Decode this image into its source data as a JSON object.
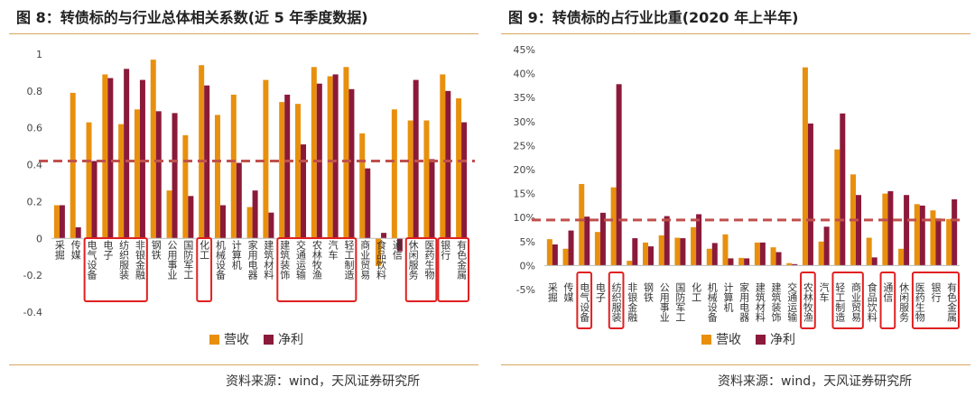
{
  "colors": {
    "revenue": "#E8900E",
    "profit": "#8B1A3A",
    "avg_line": "#C0504D",
    "highlight_box": "#E02020",
    "axis_text": "#444444"
  },
  "chart_data": [
    {
      "id": "fig8",
      "type": "bar",
      "title": "图 8：转债标的与行业总体相关系数(近 5 年季度数据)",
      "ylim": [
        -0.4,
        1
      ],
      "yticks": [
        1,
        0.8,
        0.6,
        0.4,
        0.2,
        0,
        -0.2,
        -0.4
      ],
      "ytick_labels": [
        "1",
        "0.8",
        "0.6",
        "0.4",
        "0.2",
        "0",
        "-0.2",
        "-0.4"
      ],
      "reference_line": 0.42,
      "categories": [
        "采掘",
        "传媒",
        "电气设备",
        "电子",
        "纺织服装",
        "非银金融",
        "钢铁",
        "公用事业",
        "国防军工",
        "化工",
        "机械设备",
        "计算机",
        "家用电器",
        "建筑材料",
        "建筑装饰",
        "交通运输",
        "农林牧渔",
        "汽车",
        "轻工制造",
        "商业贸易",
        "食品饮料",
        "通信",
        "休闲服务",
        "医药生物",
        "银行",
        "有色金属"
      ],
      "series": [
        {
          "name": "营收",
          "values": [
            0.18,
            0.79,
            0.63,
            0.89,
            0.62,
            0.7,
            0.97,
            0.26,
            0.56,
            0.94,
            0.67,
            0.78,
            0.17,
            0.86,
            0.74,
            0.73,
            0.93,
            0.88,
            0.93,
            0.57,
            -0.15,
            0.7,
            0.64,
            0.64,
            0.89,
            0.76
          ]
        },
        {
          "name": "净利",
          "values": [
            0.18,
            0.06,
            0.42,
            0.87,
            0.92,
            0.86,
            0.69,
            0.68,
            0.23,
            0.83,
            0.18,
            0.41,
            0.26,
            0.14,
            0.78,
            0.51,
            0.84,
            0.89,
            0.81,
            0.38,
            0.03,
            -0.07,
            0.86,
            0.43,
            0.8,
            0.63
          ]
        }
      ],
      "highlight_groups": [
        [
          2,
          5
        ],
        [
          9,
          9
        ],
        [
          14,
          18
        ],
        [
          22,
          23
        ],
        [
          24,
          25
        ]
      ],
      "legend": [
        "营收",
        "净利"
      ],
      "source": "资料来源：wind，天风证券研究所"
    },
    {
      "id": "fig9",
      "type": "bar",
      "title": "图 9：转债标的占行业比重(2020 年上半年)",
      "ylim": [
        -0.05,
        0.45
      ],
      "yticks": [
        0.45,
        0.4,
        0.35,
        0.3,
        0.25,
        0.2,
        0.15,
        0.1,
        0.05,
        0,
        -0.05
      ],
      "ytick_labels": [
        "45%",
        "40%",
        "35%",
        "30%",
        "25%",
        "20%",
        "15%",
        "10%",
        "5%",
        "0%",
        "-5%"
      ],
      "reference_line": 0.095,
      "categories": [
        "采掘",
        "传媒",
        "电气设备",
        "电子",
        "纺织服装",
        "非银金融",
        "钢铁",
        "公用事业",
        "国防军工",
        "化工",
        "机械设备",
        "计算机",
        "家用电器",
        "建筑材料",
        "建筑装饰",
        "交通运输",
        "农林牧渔",
        "汽车",
        "轻工制造",
        "商业贸易",
        "食品饮料",
        "通信",
        "休闲服务",
        "医药生物",
        "银行",
        "有色金属"
      ],
      "series": [
        {
          "name": "营收",
          "values": [
            0.055,
            0.035,
            0.17,
            0.07,
            0.163,
            0.01,
            0.048,
            0.063,
            0.058,
            0.08,
            0.035,
            0.065,
            0.016,
            0.048,
            0.038,
            0.005,
            0.413,
            0.05,
            0.242,
            0.19,
            0.058,
            0.15,
            0.035,
            0.128,
            0.115,
            0.097
          ]
        },
        {
          "name": "净利",
          "values": [
            0.044,
            0.073,
            0.102,
            0.11,
            0.378,
            0.057,
            0.04,
            0.103,
            0.057,
            0.107,
            0.047,
            0.015,
            0.015,
            0.048,
            0.028,
            0.003,
            0.296,
            0.081,
            0.317,
            0.147,
            0.017,
            0.155,
            0.147,
            0.125,
            0.098,
            0.138
          ]
        }
      ],
      "highlight_groups": [
        [
          2,
          2
        ],
        [
          4,
          4
        ],
        [
          16,
          16
        ],
        [
          18,
          19
        ],
        [
          21,
          21
        ],
        [
          23,
          25
        ]
      ],
      "legend": [
        "营收",
        "净利"
      ],
      "source": "资料来源：wind，天风证券研究所"
    }
  ]
}
